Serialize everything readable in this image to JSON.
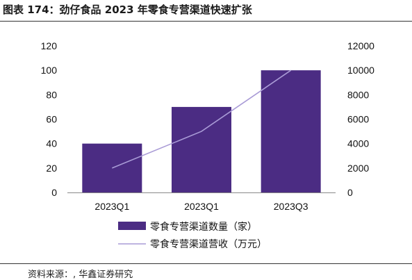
{
  "title": "图表 174：劲仔食品 2023 年零食专营渠道快速扩张",
  "source": "资料来源：, 华鑫证券研究",
  "colors": {
    "bar": "#4B2C83",
    "line": "#A99BD6",
    "axis": "#888888"
  },
  "chart_data": {
    "type": "bar",
    "categories": [
      "2023Q1",
      "2023Q1",
      "2023Q3"
    ],
    "series": [
      {
        "name": "零食专营渠道数量（家）",
        "type": "bar",
        "axis": "left",
        "values": [
          40,
          70,
          100
        ]
      },
      {
        "name": "零食专营渠道营收（万元）",
        "type": "line",
        "axis": "right",
        "values": [
          2000,
          5000,
          10000
        ]
      }
    ],
    "ylim_left": [
      0,
      120
    ],
    "yticks_left": [
      0,
      20,
      40,
      60,
      80,
      100,
      120
    ],
    "ylim_right": [
      0,
      12000
    ],
    "yticks_right": [
      0,
      2000,
      4000,
      6000,
      8000,
      10000,
      12000
    ],
    "grid": false,
    "legend_position": "bottom"
  }
}
